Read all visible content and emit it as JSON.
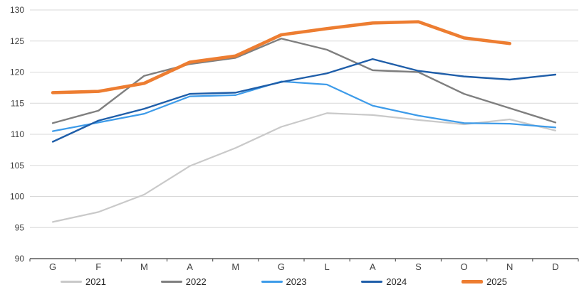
{
  "chart_data": {
    "type": "line",
    "title": "",
    "xlabel": "",
    "ylabel": "",
    "categories": [
      "G",
      "F",
      "M",
      "A",
      "M",
      "G",
      "L",
      "A",
      "S",
      "O",
      "N",
      "D"
    ],
    "series": [
      {
        "name": "2021",
        "color": "#C9C9C9",
        "width": 2.2,
        "values": [
          95.9,
          97.5,
          100.3,
          104.9,
          107.8,
          111.2,
          113.4,
          113.1,
          112.3,
          111.6,
          112.4,
          110.6
        ]
      },
      {
        "name": "2022",
        "color": "#7F7F7F",
        "width": 2.4,
        "values": [
          111.8,
          113.8,
          119.4,
          121.3,
          122.3,
          125.4,
          123.6,
          120.3,
          120.0,
          116.5,
          114.2,
          111.9
        ]
      },
      {
        "name": "2023",
        "color": "#3D9BE9",
        "width": 2.2,
        "values": [
          110.5,
          111.9,
          113.3,
          116.1,
          116.3,
          118.5,
          118.0,
          114.6,
          113.0,
          111.8,
          111.7,
          111.1
        ]
      },
      {
        "name": "2024",
        "color": "#1F5EA9",
        "width": 2.4,
        "values": [
          108.8,
          112.2,
          114.1,
          116.5,
          116.7,
          118.4,
          119.8,
          122.1,
          120.2,
          119.3,
          118.8,
          119.6
        ]
      },
      {
        "name": "2025",
        "color": "#ED7D31",
        "width": 4.6,
        "values": [
          116.7,
          116.9,
          118.2,
          121.6,
          122.6,
          126.0,
          127.0,
          127.9,
          128.1,
          125.5,
          124.6,
          null
        ]
      }
    ],
    "ylim": [
      90,
      130
    ],
    "yticks": [
      90,
      95,
      100,
      105,
      110,
      115,
      120,
      125,
      130
    ],
    "grid": "horizontal",
    "legend_position": "bottom"
  },
  "style": {
    "gridline_color": "#D9D9D9",
    "axis_color": "#595959",
    "label_color": "#404040",
    "background": "#FFFFFF"
  }
}
